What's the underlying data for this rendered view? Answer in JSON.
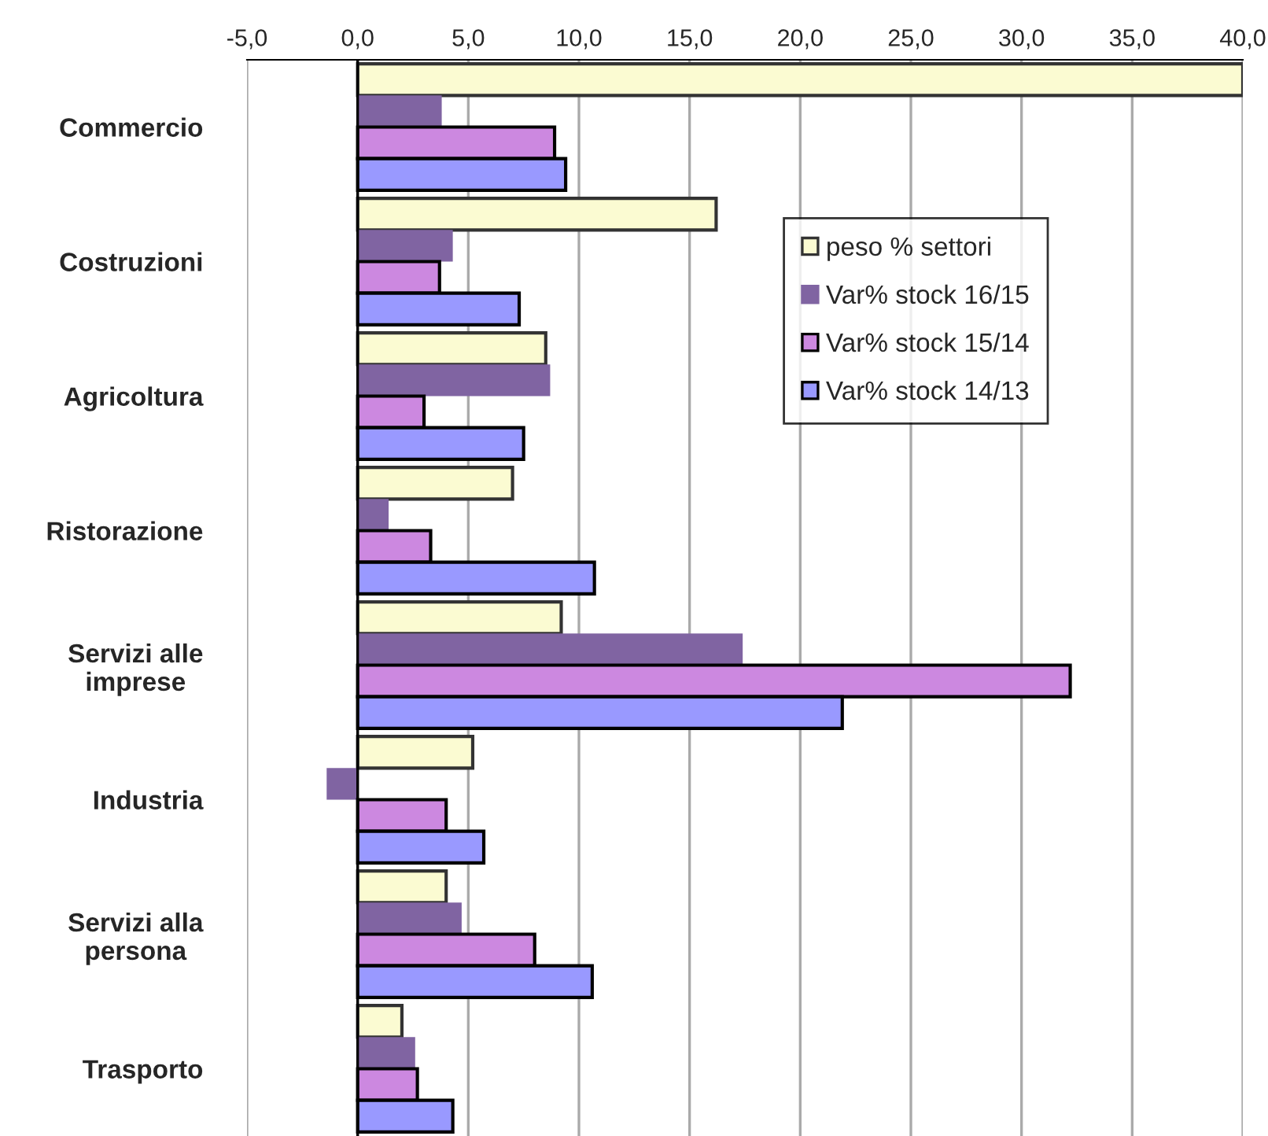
{
  "chart_data": {
    "type": "bar",
    "orientation": "horizontal",
    "categories": [
      "Commercio",
      "Costruzioni",
      "Agricoltura",
      "Ristorazione",
      "Servizi alle\nimprese",
      "Industria",
      "Servizi alla\npersona",
      "Trasporto"
    ],
    "series": [
      {
        "name": "peso % settori",
        "color": "#fbfbd2",
        "values": [
          40.0,
          16.2,
          8.5,
          7.0,
          9.2,
          5.2,
          4.0,
          2.0
        ]
      },
      {
        "name": "Var% stock 16/15",
        "color": "#8064a2",
        "values": [
          3.8,
          4.3,
          8.7,
          1.4,
          17.4,
          -1.4,
          4.7,
          2.6
        ]
      },
      {
        "name": "Var% stock 15/14",
        "color": "#cc88e0",
        "values": [
          8.9,
          3.7,
          3.0,
          3.3,
          32.2,
          4.0,
          8.0,
          2.7
        ]
      },
      {
        "name": "Var% stock 14/13",
        "color": "#9999ff",
        "values": [
          9.4,
          7.3,
          7.5,
          10.7,
          21.9,
          5.7,
          10.6,
          4.3
        ]
      }
    ],
    "xlim": [
      -5,
      40
    ],
    "xticks": [
      {
        "value": -5,
        "label": "-5,0"
      },
      {
        "value": 0,
        "label": "0,0"
      },
      {
        "value": 5,
        "label": "5,0"
      },
      {
        "value": 10,
        "label": "10,0"
      },
      {
        "value": 15,
        "label": "15,0"
      },
      {
        "value": 20,
        "label": "20,0"
      },
      {
        "value": 25,
        "label": "25,0"
      },
      {
        "value": 30,
        "label": "30,0"
      },
      {
        "value": 35,
        "label": "35,0"
      },
      {
        "value": 40,
        "label": "40,0"
      }
    ],
    "grid": "x",
    "legend": "top right"
  }
}
